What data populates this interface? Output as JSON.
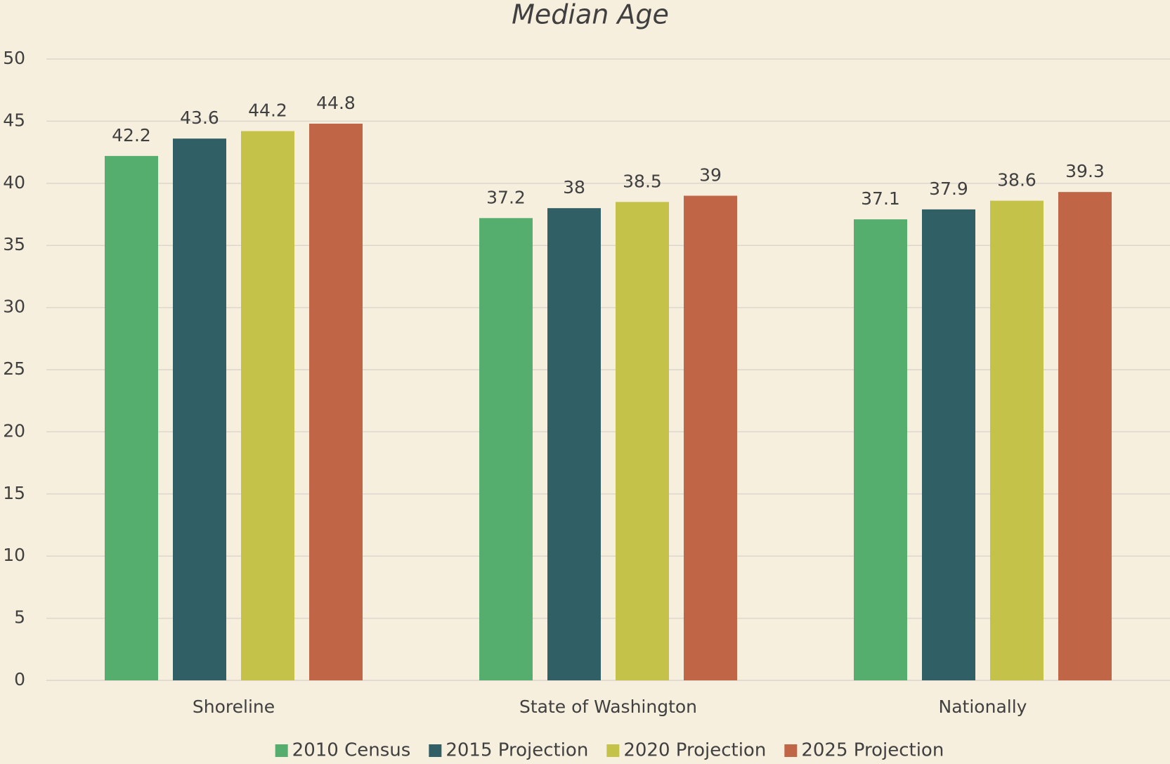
{
  "chart_data": {
    "type": "bar",
    "title": "Median Age",
    "categories": [
      "Shoreline",
      "State of Washington",
      "Nationally"
    ],
    "series": [
      {
        "name": "2010 Census",
        "color": "#55ae6e",
        "values": [
          42.2,
          37.2,
          37.1
        ]
      },
      {
        "name": "2015 Projection",
        "color": "#306066",
        "values": [
          43.6,
          38,
          37.9
        ]
      },
      {
        "name": "2020 Projection",
        "color": "#c5c24a",
        "values": [
          44.2,
          38.5,
          38.6
        ]
      },
      {
        "name": "2025 Projection",
        "color": "#c06545",
        "values": [
          44.8,
          39,
          39.3
        ]
      }
    ],
    "ylim": [
      0,
      50
    ],
    "yticks": [
      0,
      5,
      10,
      15,
      20,
      25,
      30,
      35,
      40,
      45,
      50
    ],
    "grid": true,
    "legend": "bottom"
  }
}
